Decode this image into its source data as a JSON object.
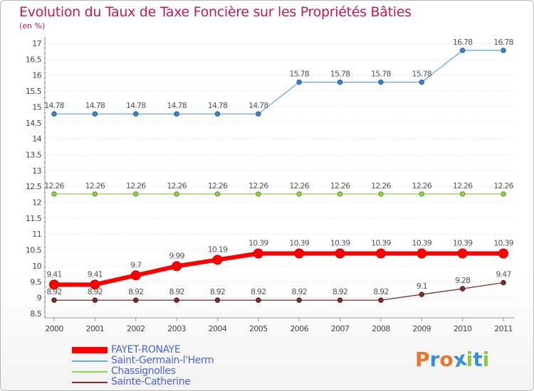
{
  "chart_data": {
    "type": "line",
    "title": "Evolution du Taux de Taxe Foncière sur les Propriétés Bâties",
    "unit_label": "(en %)",
    "xlabel": "",
    "ylabel": "",
    "x": [
      "2000",
      "2001",
      "2002",
      "2003",
      "2004",
      "2005",
      "2006",
      "2007",
      "2008",
      "2009",
      "2010",
      "2011"
    ],
    "ylim": [
      8.5,
      17
    ],
    "yticks": [
      "8.5",
      "9",
      "9.5",
      "10",
      "10.5",
      "11",
      "11.5",
      "12",
      "12.5",
      "13",
      "13.5",
      "14",
      "14.5",
      "15",
      "15.5",
      "16",
      "16.5",
      "17"
    ],
    "grid": "horizontal dotted",
    "legend_position": "bottom-left",
    "series": [
      {
        "name": "FAYET-RONAYE",
        "color": "#ff0000",
        "values": [
          9.41,
          9.41,
          9.7,
          9.99,
          10.19,
          10.39,
          10.39,
          10.39,
          10.39,
          10.39,
          10.39,
          10.39
        ],
        "labels": [
          "9.41",
          "9.41",
          "9.7",
          "9.99",
          "10.19",
          "10.39",
          "10.39",
          "10.39",
          "10.39",
          "10.39",
          "10.39",
          "10.39"
        ]
      },
      {
        "name": "Saint-Germain-l'Herm",
        "color": "#6fa8dc",
        "values": [
          14.78,
          14.78,
          14.78,
          14.78,
          14.78,
          14.78,
          15.78,
          15.78,
          15.78,
          15.78,
          16.78,
          16.78
        ],
        "labels": [
          "14.78",
          "14.78",
          "14.78",
          "14.78",
          "14.78",
          "14.78",
          "15.78",
          "15.78",
          "15.78",
          "15.78",
          "16.78",
          "16.78"
        ]
      },
      {
        "name": "Chassignolles",
        "color": "#8fd14f",
        "values": [
          12.26,
          12.26,
          12.26,
          12.26,
          12.26,
          12.26,
          12.26,
          12.26,
          12.26,
          12.26,
          12.26,
          12.26
        ],
        "labels": [
          "12.26",
          "12.26",
          "12.26",
          "12.26",
          "12.26",
          "12.26",
          "12.26",
          "12.26",
          "12.26",
          "12.26",
          "12.26",
          "12.26"
        ]
      },
      {
        "name": "Sainte-Catherine",
        "color": "#7b2f2f",
        "values": [
          8.92,
          8.92,
          8.92,
          8.92,
          8.92,
          8.92,
          8.92,
          8.92,
          8.92,
          9.1,
          9.28,
          9.47
        ],
        "labels": [
          "8.92",
          "8.92",
          "8.92",
          "8.92",
          "8.92",
          "8.92",
          "8.92",
          "8.92",
          "8.92",
          "9.1",
          "9.28",
          "9.47"
        ]
      }
    ]
  },
  "brand": {
    "name": "Proxiti",
    "letters": [
      "P",
      "r",
      "o",
      "x",
      "i",
      "t",
      "i"
    ],
    "letter_colors": [
      "#e8772e",
      "#3a8fd9",
      "#e8772e",
      "#3a8fd9",
      "#8dc63f",
      "#3a8fd9",
      "#8dc63f"
    ]
  }
}
